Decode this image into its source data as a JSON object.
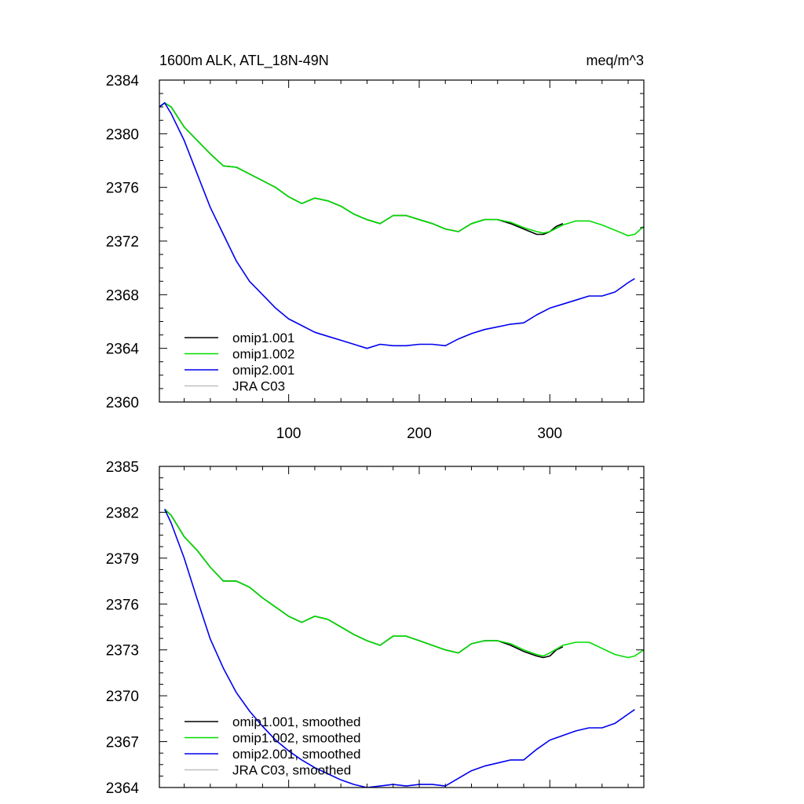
{
  "figure": {
    "title_left": "1600m ALK, ATL_18N-49N",
    "title_right": "meq/m^3"
  },
  "chart_data": [
    {
      "type": "line",
      "xlim": [
        1,
        372
      ],
      "ylim": [
        2360,
        2384
      ],
      "xticks": [
        100,
        200,
        300
      ],
      "xtick_labels": [
        "100",
        "200",
        "300"
      ],
      "yticks": [
        2360,
        2364,
        2368,
        2372,
        2376,
        2380,
        2384
      ],
      "ytick_labels": [
        "2360",
        "2364",
        "2368",
        "2372",
        "2376",
        "2380",
        "2384"
      ],
      "show_x_tick_labels": true,
      "legend_placement": "bottom-left",
      "series": [
        {
          "name": "omip1.001",
          "color": "#000000",
          "x": [
            1,
            5,
            10,
            20,
            30,
            40,
            50,
            60,
            70,
            80,
            90,
            100,
            110,
            120,
            130,
            140,
            150,
            160,
            170,
            180,
            190,
            200,
            210,
            220,
            230,
            240,
            250,
            260,
            270,
            280,
            290,
            295,
            300,
            305,
            310
          ],
          "y": [
            2382.0,
            2382.3,
            2382.0,
            2380.5,
            2379.5,
            2378.5,
            2377.6,
            2377.5,
            2377.0,
            2376.5,
            2376.0,
            2375.3,
            2374.8,
            2375.2,
            2375.0,
            2374.6,
            2374.0,
            2373.6,
            2373.3,
            2373.9,
            2373.9,
            2373.6,
            2373.3,
            2372.9,
            2372.7,
            2373.3,
            2373.6,
            2373.6,
            2373.3,
            2372.9,
            2372.5,
            2372.5,
            2372.7,
            2373.1,
            2373.3
          ]
        },
        {
          "name": "omip1.002",
          "color": "#00dd00",
          "x": [
            1,
            5,
            10,
            20,
            30,
            40,
            50,
            60,
            70,
            80,
            90,
            100,
            110,
            120,
            130,
            140,
            150,
            160,
            170,
            180,
            190,
            200,
            210,
            220,
            230,
            240,
            250,
            260,
            270,
            280,
            290,
            295,
            300,
            310,
            320,
            330,
            340,
            350,
            360,
            365,
            372
          ],
          "y": [
            2382.0,
            2382.3,
            2382.0,
            2380.5,
            2379.5,
            2378.5,
            2377.6,
            2377.5,
            2377.0,
            2376.5,
            2376.0,
            2375.3,
            2374.8,
            2375.2,
            2375.0,
            2374.6,
            2374.0,
            2373.6,
            2373.3,
            2373.9,
            2373.9,
            2373.6,
            2373.3,
            2372.9,
            2372.7,
            2373.3,
            2373.6,
            2373.6,
            2373.4,
            2373.0,
            2372.7,
            2372.6,
            2372.7,
            2373.2,
            2373.5,
            2373.5,
            2373.2,
            2372.8,
            2372.4,
            2372.5,
            2373.1
          ]
        },
        {
          "name": "omip2.001",
          "color": "#0000ee",
          "x": [
            1,
            5,
            10,
            20,
            30,
            40,
            50,
            60,
            70,
            80,
            90,
            100,
            110,
            120,
            130,
            140,
            150,
            160,
            170,
            180,
            190,
            200,
            210,
            220,
            230,
            240,
            250,
            260,
            270,
            280,
            290,
            300,
            310,
            320,
            330,
            340,
            350,
            360,
            365
          ],
          "y": [
            2382.0,
            2382.3,
            2381.5,
            2379.5,
            2377.0,
            2374.5,
            2372.5,
            2370.5,
            2369.0,
            2368.0,
            2367.0,
            2366.2,
            2365.7,
            2365.2,
            2364.9,
            2364.6,
            2364.3,
            2364.0,
            2364.3,
            2364.2,
            2364.2,
            2364.3,
            2364.3,
            2364.2,
            2364.7,
            2365.1,
            2365.4,
            2365.6,
            2365.8,
            2365.9,
            2366.5,
            2367.0,
            2367.3,
            2367.6,
            2367.9,
            2367.9,
            2368.2,
            2368.9,
            2369.2
          ]
        },
        {
          "name": "JRA C03",
          "color": "#c0c0c0",
          "x": [],
          "y": []
        }
      ]
    },
    {
      "type": "line",
      "xlim": [
        1,
        372
      ],
      "ylim": [
        2364,
        2385
      ],
      "xticks": [
        100,
        200,
        300
      ],
      "xtick_labels": [],
      "yticks": [
        2364,
        2367,
        2370,
        2373,
        2376,
        2379,
        2382,
        2385
      ],
      "ytick_labels": [
        "2364",
        "2367",
        "2370",
        "2373",
        "2376",
        "2379",
        "2382",
        "2385"
      ],
      "show_x_tick_labels": false,
      "legend_placement": "bottom-left",
      "series": [
        {
          "name": "omip1.001, smoothed",
          "color": "#000000",
          "x": [
            5,
            10,
            20,
            30,
            40,
            50,
            60,
            70,
            80,
            90,
            100,
            110,
            120,
            130,
            140,
            150,
            160,
            170,
            180,
            190,
            200,
            210,
            220,
            230,
            240,
            250,
            260,
            270,
            280,
            290,
            295,
            300,
            305,
            310
          ],
          "y": [
            2382.2,
            2381.8,
            2380.4,
            2379.5,
            2378.4,
            2377.5,
            2377.5,
            2377.1,
            2376.4,
            2375.8,
            2375.2,
            2374.8,
            2375.2,
            2375.0,
            2374.5,
            2374.0,
            2373.6,
            2373.3,
            2373.9,
            2373.9,
            2373.6,
            2373.3,
            2373.0,
            2372.8,
            2373.4,
            2373.6,
            2373.6,
            2373.3,
            2372.9,
            2372.6,
            2372.5,
            2372.6,
            2373.0,
            2373.2
          ]
        },
        {
          "name": "omip1.002, smoothed",
          "color": "#00dd00",
          "x": [
            5,
            10,
            20,
            30,
            40,
            50,
            60,
            70,
            80,
            90,
            100,
            110,
            120,
            130,
            140,
            150,
            160,
            170,
            180,
            190,
            200,
            210,
            220,
            230,
            240,
            250,
            260,
            270,
            280,
            290,
            295,
            300,
            310,
            320,
            330,
            340,
            350,
            360,
            365,
            372
          ],
          "y": [
            2382.2,
            2381.8,
            2380.4,
            2379.5,
            2378.4,
            2377.5,
            2377.5,
            2377.1,
            2376.4,
            2375.8,
            2375.2,
            2374.8,
            2375.2,
            2375.0,
            2374.5,
            2374.0,
            2373.6,
            2373.3,
            2373.9,
            2373.9,
            2373.6,
            2373.3,
            2373.0,
            2372.8,
            2373.4,
            2373.6,
            2373.6,
            2373.4,
            2373.0,
            2372.7,
            2372.6,
            2372.8,
            2373.3,
            2373.5,
            2373.5,
            2373.1,
            2372.7,
            2372.5,
            2372.6,
            2373.0
          ]
        },
        {
          "name": "omip2.001, smoothed",
          "color": "#0000ee",
          "x": [
            5,
            10,
            20,
            30,
            40,
            50,
            60,
            70,
            80,
            90,
            100,
            110,
            120,
            130,
            140,
            150,
            160,
            170,
            180,
            190,
            200,
            210,
            220,
            230,
            240,
            250,
            260,
            270,
            280,
            290,
            300,
            310,
            320,
            330,
            340,
            350,
            360,
            365
          ],
          "y": [
            2382.2,
            2381.3,
            2379.0,
            2376.3,
            2373.7,
            2371.8,
            2370.2,
            2369.0,
            2368.0,
            2367.1,
            2366.4,
            2365.8,
            2365.3,
            2364.9,
            2364.5,
            2364.2,
            2364.0,
            2364.1,
            2364.2,
            2364.1,
            2364.2,
            2364.2,
            2364.1,
            2364.6,
            2365.1,
            2365.4,
            2365.6,
            2365.8,
            2365.8,
            2366.5,
            2367.1,
            2367.4,
            2367.7,
            2367.9,
            2367.9,
            2368.2,
            2368.8,
            2369.1
          ]
        },
        {
          "name": "JRA C03, smoothed",
          "color": "#c0c0c0",
          "x": [],
          "y": []
        }
      ]
    }
  ]
}
